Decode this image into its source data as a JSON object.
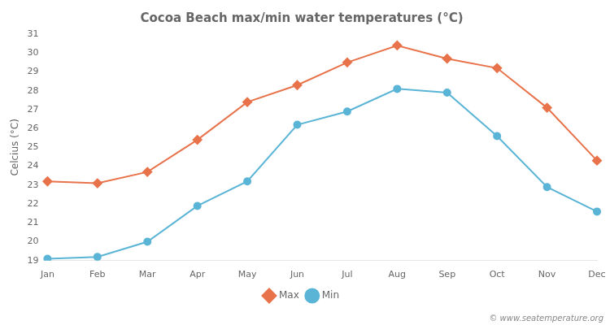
{
  "chart_data": {
    "type": "line",
    "title": "Cocoa Beach max/min water temperatures (°C)",
    "y_label": "Celcius (°C)",
    "categories": [
      "Jan",
      "Feb",
      "Mar",
      "Apr",
      "May",
      "Jun",
      "Jul",
      "Aug",
      "Sep",
      "Oct",
      "Nov",
      "Dec"
    ],
    "series": [
      {
        "name": "Max",
        "color": "#e8724a",
        "marker": "diamond",
        "values": [
          23.2,
          23.1,
          23.7,
          25.4,
          27.4,
          28.3,
          29.5,
          30.4,
          29.7,
          29.2,
          27.1,
          24.3
        ]
      },
      {
        "name": "Min",
        "color": "#5ab4d6",
        "marker": "circle",
        "values": [
          19.1,
          19.2,
          20.0,
          21.9,
          23.2,
          26.2,
          26.9,
          28.1,
          27.9,
          25.6,
          22.9,
          21.6
        ]
      }
    ],
    "ylim": [
      19,
      31
    ],
    "yticks": [
      19,
      20,
      21,
      22,
      23,
      24,
      25,
      26,
      27,
      28,
      29,
      30,
      31
    ],
    "grid": false,
    "legend": "bottom",
    "annotations": [
      "© www.seatemperature.org"
    ]
  }
}
